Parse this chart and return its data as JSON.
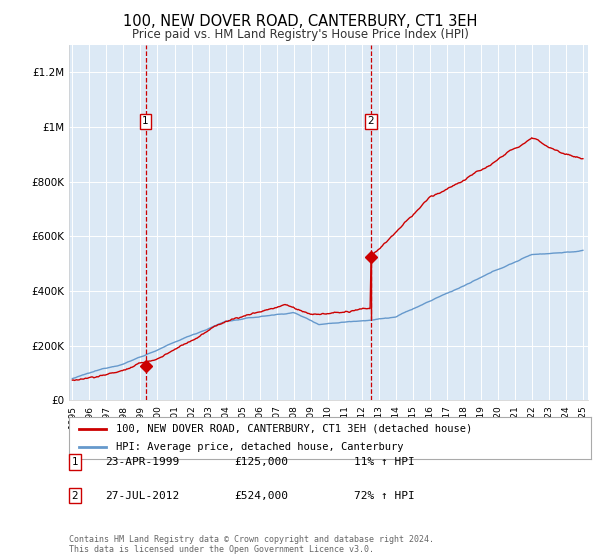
{
  "title": "100, NEW DOVER ROAD, CANTERBURY, CT1 3EH",
  "subtitle": "Price paid vs. HM Land Registry's House Price Index (HPI)",
  "legend_property": "100, NEW DOVER ROAD, CANTERBURY, CT1 3EH (detached house)",
  "legend_hpi": "HPI: Average price, detached house, Canterbury",
  "footnote": "Contains HM Land Registry data © Crown copyright and database right 2024.\nThis data is licensed under the Open Government Licence v3.0.",
  "sale1_date": "23-APR-1999",
  "sale1_price": "£125,000",
  "sale1_hpi": "11% ↑ HPI",
  "sale1_year": 1999.3,
  "sale1_value": 125000,
  "sale2_date": "27-JUL-2012",
  "sale2_price": "£524,000",
  "sale2_hpi": "72% ↑ HPI",
  "sale2_year": 2012.55,
  "sale2_value": 524000,
  "ylim": [
    0,
    1300000
  ],
  "xlim_start": 1994.8,
  "xlim_end": 2025.3,
  "background_color": "#dce9f5",
  "red_line_color": "#cc0000",
  "blue_line_color": "#6699cc",
  "grid_color": "#ffffff",
  "box_color": "#cc0000",
  "title_fontsize": 11,
  "subtitle_fontsize": 9
}
